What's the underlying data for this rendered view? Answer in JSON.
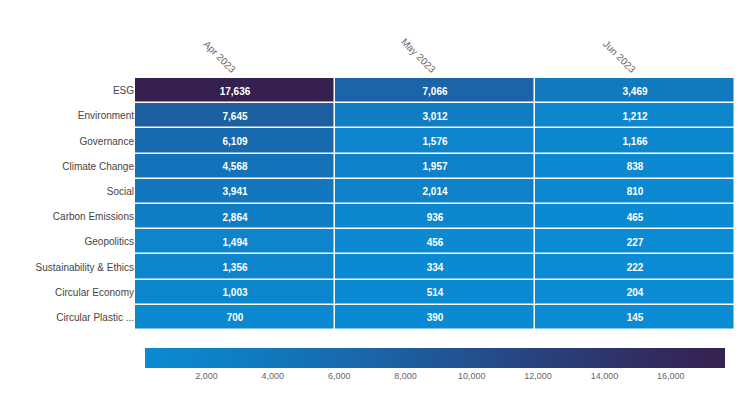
{
  "chart_data": {
    "type": "heatmap",
    "x": [
      "Apr 2023",
      "May 2023",
      "Jun 2023"
    ],
    "categories": [
      "ESG",
      "Environment",
      "Governance",
      "Climate Change",
      "Social",
      "Carbon Emissions",
      "Geopolitics",
      "Sustainability & Ethics",
      "Circular Economy",
      "Circular Plastic ..."
    ],
    "cells": [
      [
        17636,
        7066,
        3469
      ],
      [
        7645,
        3012,
        1212
      ],
      [
        6109,
        1576,
        1166
      ],
      [
        4568,
        1957,
        838
      ],
      [
        3941,
        2014,
        810
      ],
      [
        2864,
        936,
        465
      ],
      [
        1494,
        456,
        227
      ],
      [
        1356,
        334,
        222
      ],
      [
        1003,
        514,
        204
      ],
      [
        700,
        390,
        145
      ]
    ],
    "value_labels": [
      [
        "17,636",
        "7,066",
        "3,469"
      ],
      [
        "7,645",
        "3,012",
        "1,212"
      ],
      [
        "6,109",
        "1,576",
        "1,166"
      ],
      [
        "4,568",
        "1,957",
        "838"
      ],
      [
        "3,941",
        "2,014",
        "810"
      ],
      [
        "2,864",
        "936",
        "465"
      ],
      [
        "1,494",
        "456",
        "227"
      ],
      [
        "1,356",
        "334",
        "222"
      ],
      [
        "1,003",
        "514",
        "204"
      ],
      [
        "700",
        "390",
        "145"
      ]
    ],
    "data_labels": true,
    "colorbar": {
      "range": [
        145,
        17636
      ],
      "ticks": [
        {
          "value": 2000,
          "label": "2,000"
        },
        {
          "value": 4000,
          "label": "4,000"
        },
        {
          "value": 6000,
          "label": "6,000"
        },
        {
          "value": 8000,
          "label": "8,000"
        },
        {
          "value": 10000,
          "label": "10,000"
        },
        {
          "value": 12000,
          "label": "12,000"
        },
        {
          "value": 14000,
          "label": "14,000"
        },
        {
          "value": 16000,
          "label": "16,000"
        }
      ]
    }
  }
}
